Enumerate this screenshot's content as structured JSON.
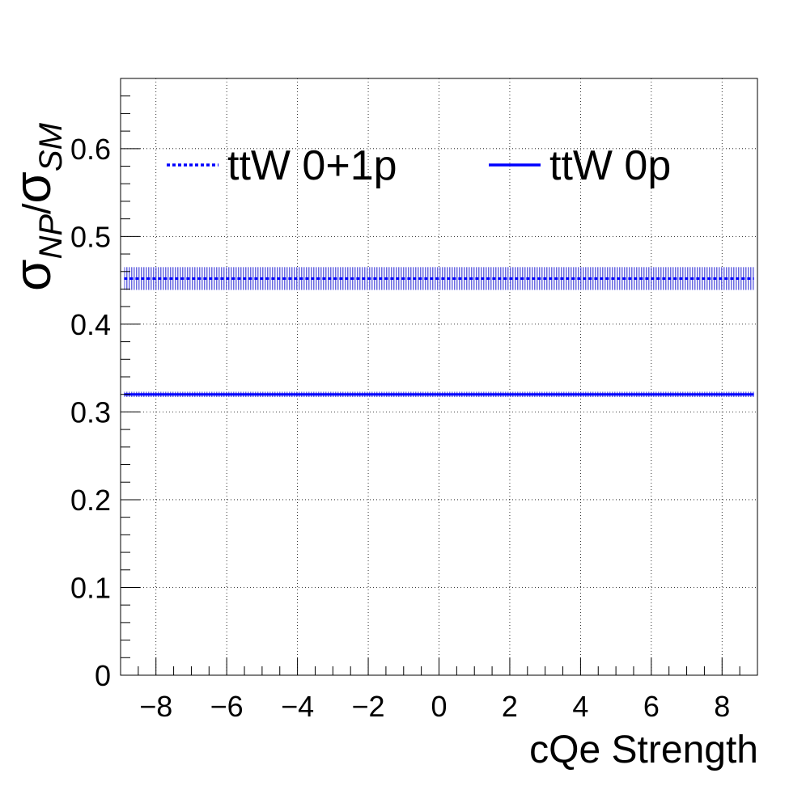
{
  "chart_data": {
    "type": "line",
    "xlabel": "cQe Strength",
    "ylabel_main": "σ",
    "ylabel_sub1": "NP",
    "ylabel_slash": "/",
    "ylabel_sub2": "SM",
    "xlim": [
      -9,
      9
    ],
    "ylim": [
      0,
      0.68
    ],
    "xticks": [
      -8,
      -6,
      -4,
      -2,
      0,
      2,
      4,
      6,
      8
    ],
    "xtick_labels": [
      "−8",
      "−6",
      "−4",
      "−2",
      "0",
      "2",
      "4",
      "6",
      "8"
    ],
    "yticks": [
      0,
      0.1,
      0.2,
      0.3,
      0.4,
      0.5,
      0.6
    ],
    "ytick_labels": [
      "0",
      "0.1",
      "0.2",
      "0.3",
      "0.4",
      "0.5",
      "0.6"
    ],
    "grid": true,
    "legend_position": "top",
    "series": [
      {
        "name": "ttW 0+1p",
        "style": "dotted",
        "color": "#0000ff",
        "x": [
          -8.9,
          -8,
          -6,
          -4,
          -2,
          0,
          2,
          4,
          6,
          8,
          8.9
        ],
        "y": [
          0.452,
          0.452,
          0.452,
          0.452,
          0.452,
          0.452,
          0.452,
          0.452,
          0.452,
          0.452,
          0.452
        ],
        "band": [
          0.439,
          0.465
        ]
      },
      {
        "name": "ttW 0p",
        "style": "solid",
        "color": "#0000ff",
        "x": [
          -8.9,
          -8,
          -6,
          -4,
          -2,
          0,
          2,
          4,
          6,
          8,
          8.9
        ],
        "y": [
          0.32,
          0.32,
          0.32,
          0.32,
          0.32,
          0.32,
          0.32,
          0.32,
          0.32,
          0.32,
          0.32
        ],
        "band": [
          0.317,
          0.323
        ]
      }
    ]
  }
}
